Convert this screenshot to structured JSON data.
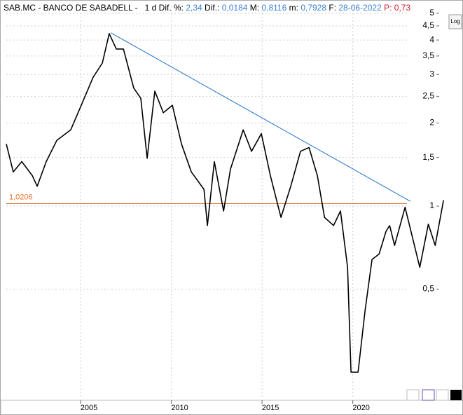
{
  "header": {
    "symbol": "SAB.MC - BANCO DE SABADELL -",
    "period": "1 d",
    "diff_pct_label": "Dif. %:",
    "diff_pct": "2,34",
    "diff_label": "Dif.:",
    "diff": "0,0184",
    "max_label": "M:",
    "max": "0,8116",
    "min_label": "m:",
    "min": "0,7928",
    "date_label": "F:",
    "date": "28-06-2022",
    "price_label": "P:",
    "price": "0,73"
  },
  "log_button": "Log",
  "chart_data": {
    "type": "line",
    "log_scale": true,
    "grid": true,
    "xlim": [
      2000.6,
      2025.3
    ],
    "xticks": [
      2005,
      2010,
      2015,
      2020
    ],
    "ylim": [
      0.2,
      5.3
    ],
    "yticks": [
      {
        "value": 5,
        "label": "5"
      },
      {
        "value": 4.5,
        "label": "4,5"
      },
      4,
      {
        "value": 3.5,
        "label": "3,5"
      },
      3,
      {
        "value": 2.5,
        "label": "2,5"
      },
      2,
      {
        "value": 1.5,
        "label": "1,5"
      },
      1,
      {
        "value": 0.5,
        "label": "0,5"
      }
    ],
    "series": [
      {
        "color": "#000000",
        "x": [
          2000.91,
          2001.29,
          2001.76,
          2002.34,
          2002.61,
          2003.11,
          2003.69,
          2004.46,
          2005.04,
          2005.69,
          2006.2,
          2006.58,
          2006.97,
          2007.36,
          2007.93,
          2008.32,
          2008.67,
          2009.09,
          2009.56,
          2010.06,
          2010.56,
          2011.1,
          2011.8,
          2011.99,
          2012.37,
          2012.88,
          2013.26,
          2013.96,
          2014.42,
          2014.96,
          2015.46,
          2016.04,
          2016.58,
          2017.12,
          2017.59,
          2018.05,
          2018.44,
          2018.94,
          2019.32,
          2019.71,
          2019.9,
          2020.29,
          2020.68,
          2021.06,
          2021.45,
          2021.83,
          2022.03
        ],
        "values": [
          1.68,
          1.33,
          1.45,
          1.29,
          1.18,
          1.45,
          1.73,
          1.89,
          2.32,
          2.93,
          3.3,
          4.22,
          3.71,
          3.71,
          2.68,
          2.46,
          1.49,
          2.61,
          2.18,
          2.32,
          1.68,
          1.33,
          1.15,
          0.85,
          1.45,
          0.96,
          1.36,
          1.89,
          1.58,
          1.83,
          1.29,
          0.91,
          1.18,
          1.58,
          1.63,
          1.29,
          0.91,
          0.85,
          0.96,
          0.6,
          0.25,
          0.25,
          0.42,
          0.64,
          0.67,
          0.81,
          0.85
        ]
      },
      {
        "color": "#000000",
        "x": [
          2022.03,
          2022.3,
          2022.88,
          2023.69,
          2024.16,
          2024.54,
          2025.0
        ],
        "values": [
          0.85,
          0.72,
          0.99,
          0.6,
          0.86,
          0.72,
          1.05
        ]
      }
    ],
    "trendline": {
      "color": "#1f6fc5",
      "x": [
        2006.66,
        2023.18
      ],
      "values": [
        4.25,
        1.04
      ]
    },
    "level": {
      "color": "#e0702a",
      "value": 1.0206,
      "label": "1,0206"
    }
  }
}
